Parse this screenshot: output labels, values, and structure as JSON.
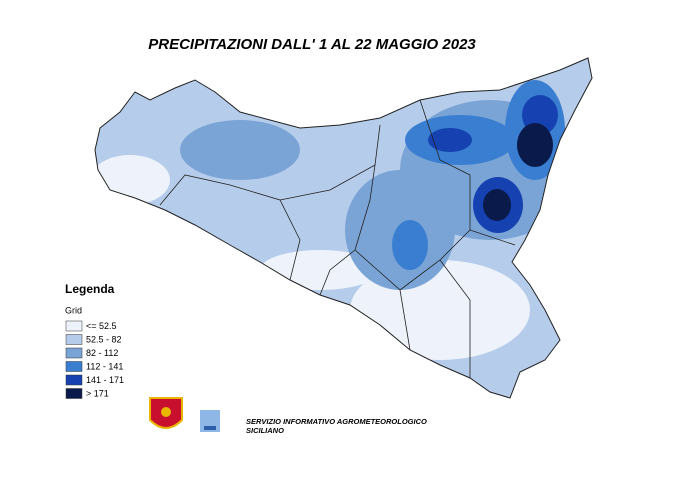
{
  "title": "PRECIPITAZIONI DALL' 1 AL 22 MAGGIO 2023",
  "legend": {
    "title": "Legenda",
    "subtitle": "Grid",
    "items": [
      {
        "label": "<= 52.5",
        "color": "#eef3fb"
      },
      {
        "label": "52.5 - 82",
        "color": "#b5cceb"
      },
      {
        "label": "82 - 112",
        "color": "#7aa4d6"
      },
      {
        "label": "112 - 141",
        "color": "#3a7ed1"
      },
      {
        "label": "141 - 171",
        "color": "#1542b0"
      },
      {
        "label": "> 171",
        "color": "#0a1a4a"
      }
    ]
  },
  "footer": {
    "lines": [
      "SERVIZIO INFORMATIVO AGROMETEOROLOGICO",
      "SICILIANO"
    ]
  }
}
